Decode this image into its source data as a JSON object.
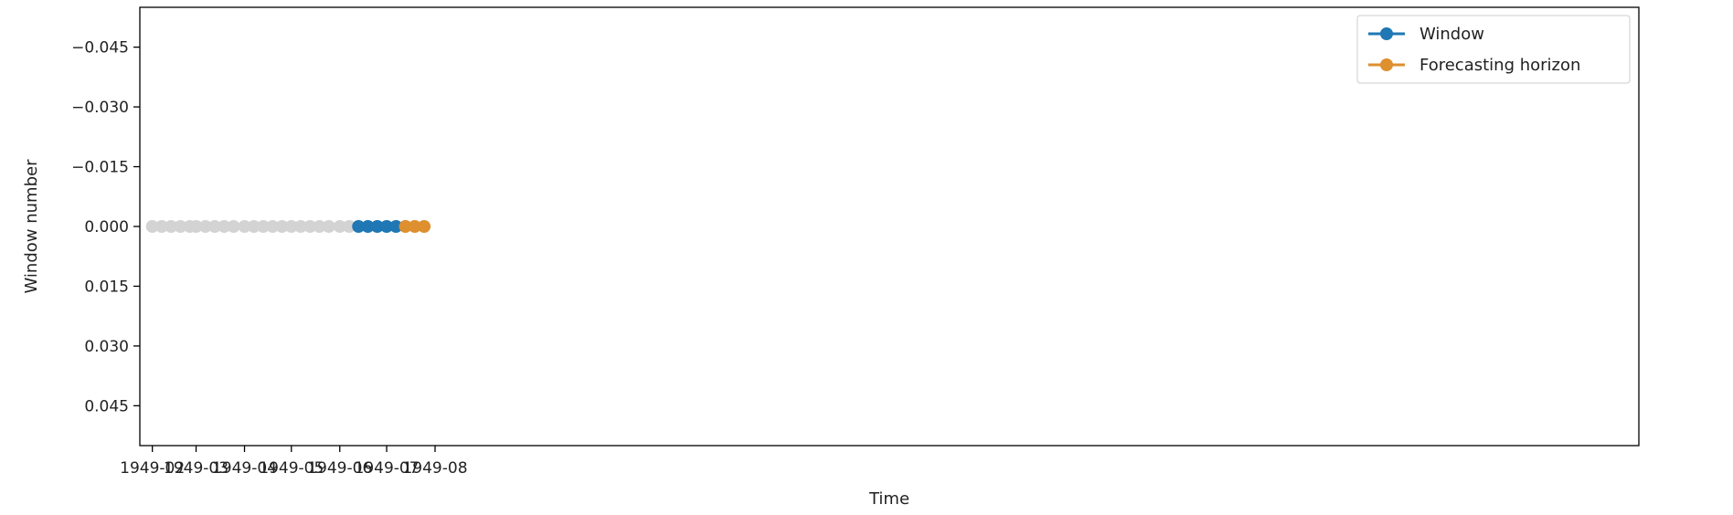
{
  "chart_data": {
    "type": "line",
    "xlabel": "Time",
    "ylabel": "Window number",
    "x_ticks": [
      "1949-02",
      "1949-03",
      "1949-04",
      "1949-05",
      "1949-06",
      "1949-07",
      "1949-08"
    ],
    "y_ticks": [
      "−0.045",
      "−0.030",
      "−0.015",
      "0.000",
      "0.015",
      "0.030",
      "0.045"
    ],
    "y_tick_values": [
      -0.045,
      -0.03,
      -0.015,
      0.0,
      0.015,
      0.03,
      0.045
    ],
    "ylim": [
      0.055,
      -0.055
    ],
    "y_inverted": true,
    "grid": false,
    "legend_position": "top-right",
    "series": [
      {
        "color": "#d3d3d3",
        "x": [
          "1949-02-01",
          "1949-02-07",
          "1949-02-13",
          "1949-02-19",
          "1949-02-25",
          "1949-03-01",
          "1949-03-07",
          "1949-03-13",
          "1949-03-19",
          "1949-03-25",
          "1949-04-01",
          "1949-04-07",
          "1949-04-13",
          "1949-04-19",
          "1949-04-25",
          "1949-05-01",
          "1949-05-07",
          "1949-05-13",
          "1949-05-19",
          "1949-05-25",
          "1949-06-01",
          "1949-06-07"
        ],
        "y": [
          0,
          0,
          0,
          0,
          0,
          0,
          0,
          0,
          0,
          0,
          0,
          0,
          0,
          0,
          0,
          0,
          0,
          0,
          0,
          0,
          0,
          0
        ]
      },
      {
        "name": "Window",
        "color": "#1f77b4",
        "x": [
          "1949-06-13",
          "1949-06-19",
          "1949-06-25",
          "1949-07-01",
          "1949-07-07"
        ],
        "y": [
          0,
          0,
          0,
          0,
          0
        ]
      },
      {
        "name": "Forecasting horizon",
        "color": "#de8f2e",
        "x": [
          "1949-07-13",
          "1949-07-19",
          "1949-07-25"
        ],
        "y": [
          0,
          0,
          0
        ]
      }
    ]
  }
}
